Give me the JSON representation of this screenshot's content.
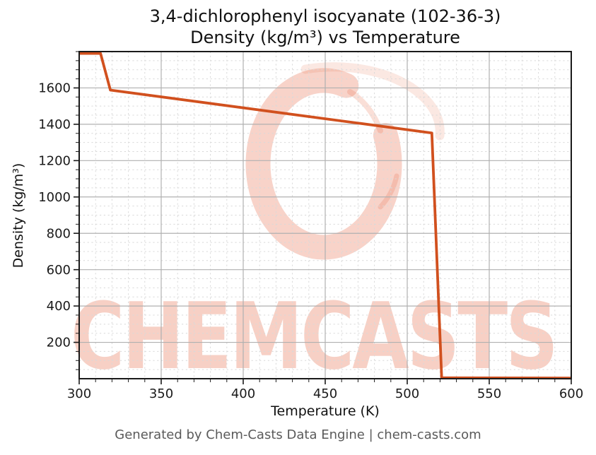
{
  "figure": {
    "title_line1": "3,4-dichlorophenyl isocyanate (102-36-3)",
    "title_line2": "Density (kg/m³) vs Temperature",
    "watermark_text": "CHEMCASTS",
    "footer": "Generated by Chem-Casts Data Engine | chem-casts.com"
  },
  "chart_data": {
    "type": "line",
    "title": "3,4-dichlorophenyl isocyanate (102-36-3)",
    "subtitle": "Density (kg/m³) vs Temperature",
    "xlabel": "Temperature (K)",
    "ylabel": "Density (kg/m³)",
    "xlim": [
      300,
      600
    ],
    "ylim": [
      0,
      1800
    ],
    "xticks": [
      300,
      350,
      400,
      450,
      500,
      550,
      600
    ],
    "yticks": [
      200,
      400,
      600,
      800,
      1000,
      1200,
      1400,
      1600
    ],
    "x_minor_step": 10,
    "y_minor_step": 50,
    "grid": "major solid + minor dashed",
    "legend_position": "none",
    "line_color": "#d1501e",
    "series": [
      {
        "name": "Density (kg/m³)",
        "x": [
          300,
          313,
          319,
          515,
          521,
          600
        ],
        "y": [
          1790,
          1790,
          1588,
          1352,
          5,
          3
        ]
      }
    ]
  },
  "colors": {
    "accent_line": "#d1501e",
    "watermark_pink": "rgba(231,110,75,0.30)",
    "watermark_pink_faint": "rgba(231,110,75,0.18)",
    "grid_major": "#b0b0b0",
    "grid_minor": "#d9d9d9",
    "spine": "#1a1a1a",
    "tick_label": "#1a1a1a",
    "footer_text": "#5a5a5a"
  }
}
